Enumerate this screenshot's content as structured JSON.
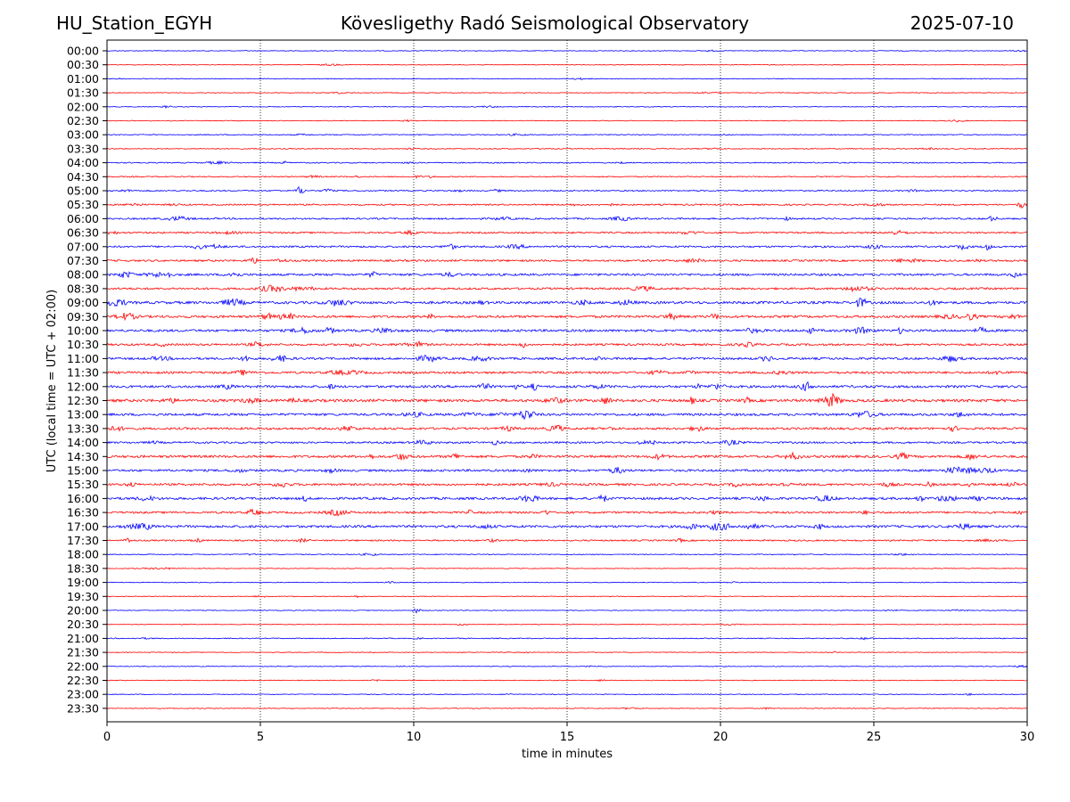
{
  "header": {
    "station": "HU_Station_EGYH",
    "observatory": "Kövesligethy Radó Seismological Observatory",
    "date": "2025-07-10"
  },
  "chart_data": {
    "type": "line",
    "title": "Kövesligethy Radó Seismological Observatory",
    "xlabel": "time in minutes",
    "ylabel": "UTC (local time = UTC + 02:00)",
    "xlim": [
      0,
      30
    ],
    "x_ticks": [
      "0",
      "5",
      "10",
      "15",
      "20",
      "25",
      "30"
    ],
    "grid": "vertical dotted lines at 5-minute intervals",
    "colors": [
      "#0000ff",
      "#ff0000"
    ],
    "trace_labels": [
      "00:00",
      "00:30",
      "01:00",
      "01:30",
      "02:00",
      "02:30",
      "03:00",
      "03:30",
      "04:00",
      "04:30",
      "05:00",
      "05:30",
      "06:00",
      "06:30",
      "07:00",
      "07:30",
      "08:00",
      "08:30",
      "09:00",
      "09:30",
      "10:00",
      "10:30",
      "11:00",
      "11:30",
      "12:00",
      "12:30",
      "13:00",
      "13:30",
      "14:00",
      "14:30",
      "15:00",
      "15:30",
      "16:00",
      "16:30",
      "17:00",
      "17:30",
      "18:00",
      "18:30",
      "19:00",
      "19:30",
      "20:00",
      "20:30",
      "21:00",
      "21:30",
      "22:00",
      "22:30",
      "23:00",
      "23:30"
    ],
    "noise_level": [
      0.4,
      0.4,
      0.4,
      0.4,
      0.4,
      0.4,
      0.5,
      0.5,
      0.6,
      0.6,
      0.7,
      0.8,
      0.9,
      0.9,
      1.0,
      1.0,
      1.2,
      1.1,
      1.4,
      1.3,
      1.3,
      1.1,
      1.2,
      1.2,
      1.3,
      1.5,
      1.3,
      1.2,
      1.0,
      1.3,
      1.2,
      1.2,
      1.3,
      1.1,
      1.3,
      0.8,
      0.5,
      0.4,
      0.4,
      0.4,
      0.4,
      0.4,
      0.5,
      0.4,
      0.4,
      0.4,
      0.4,
      0.4
    ],
    "events": [
      {
        "trace": "05:00",
        "minute": 6.3,
        "amplitude": 4.5
      },
      {
        "trace": "05:00",
        "minute": 7.2,
        "amplitude": 2.5
      },
      {
        "trace": "05:30",
        "minute": 29.8,
        "amplitude": 3.0
      },
      {
        "trace": "07:00",
        "minute": 28.7,
        "amplitude": 3.0
      },
      {
        "trace": "07:30",
        "minute": 25.8,
        "amplitude": 2.0
      },
      {
        "trace": "09:00",
        "minute": 0.5,
        "amplitude": 2.5
      },
      {
        "trace": "09:00",
        "minute": 24.5,
        "amplitude": 2.5
      },
      {
        "trace": "09:30",
        "minute": 19.8,
        "amplitude": 3.0
      },
      {
        "trace": "09:30",
        "minute": 6.0,
        "amplitude": 2.5
      },
      {
        "trace": "11:00",
        "minute": 4.5,
        "amplitude": 3.0
      },
      {
        "trace": "12:00",
        "minute": 13.9,
        "amplitude": 3.5
      },
      {
        "trace": "12:00",
        "minute": 7.3,
        "amplitude": 2.0
      },
      {
        "trace": "13:30",
        "minute": 27.6,
        "amplitude": 2.5
      },
      {
        "trace": "15:30",
        "minute": 0.8,
        "amplitude": 2.5
      },
      {
        "trace": "15:30",
        "minute": 29.5,
        "amplitude": 2.5
      },
      {
        "trace": "16:00",
        "minute": 26.5,
        "amplitude": 2.5
      },
      {
        "trace": "16:00",
        "minute": 13.9,
        "amplitude": 2.5
      },
      {
        "trace": "16:30",
        "minute": 4.7,
        "amplitude": 2.5
      },
      {
        "trace": "17:00",
        "minute": 23.2,
        "amplitude": 3.0
      },
      {
        "trace": "17:30",
        "minute": 0.7,
        "amplitude": 2.5
      },
      {
        "trace": "20:00",
        "minute": 10.1,
        "amplitude": 2.5
      }
    ]
  }
}
